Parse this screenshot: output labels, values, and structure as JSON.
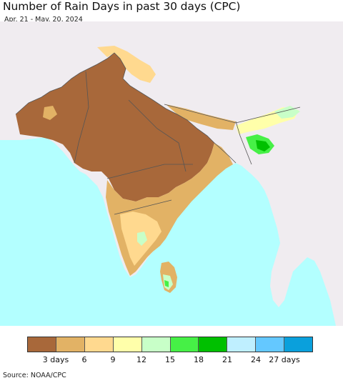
{
  "title": "Number of Rain Days in past 30 days (CPC)",
  "subtitle": "Apr. 21 - May. 20, 2024",
  "source": "Source: NOAA/CPC",
  "map": {
    "colors": {
      "ocean": "#b3ffff",
      "land_nodata": "#f0ecf0",
      "border": "#555555",
      "country_border": "#111111"
    }
  },
  "legend": {
    "colors": [
      "#a8683a",
      "#e2b265",
      "#ffd98f",
      "#ffffaa",
      "#c8ffc8",
      "#46f046",
      "#00c000",
      "#bfefff",
      "#64c8ff",
      "#0aa0dc"
    ],
    "ticks": [
      "3 days",
      "6",
      "9",
      "12",
      "15",
      "18",
      "21",
      "24",
      "27 days"
    ]
  }
}
